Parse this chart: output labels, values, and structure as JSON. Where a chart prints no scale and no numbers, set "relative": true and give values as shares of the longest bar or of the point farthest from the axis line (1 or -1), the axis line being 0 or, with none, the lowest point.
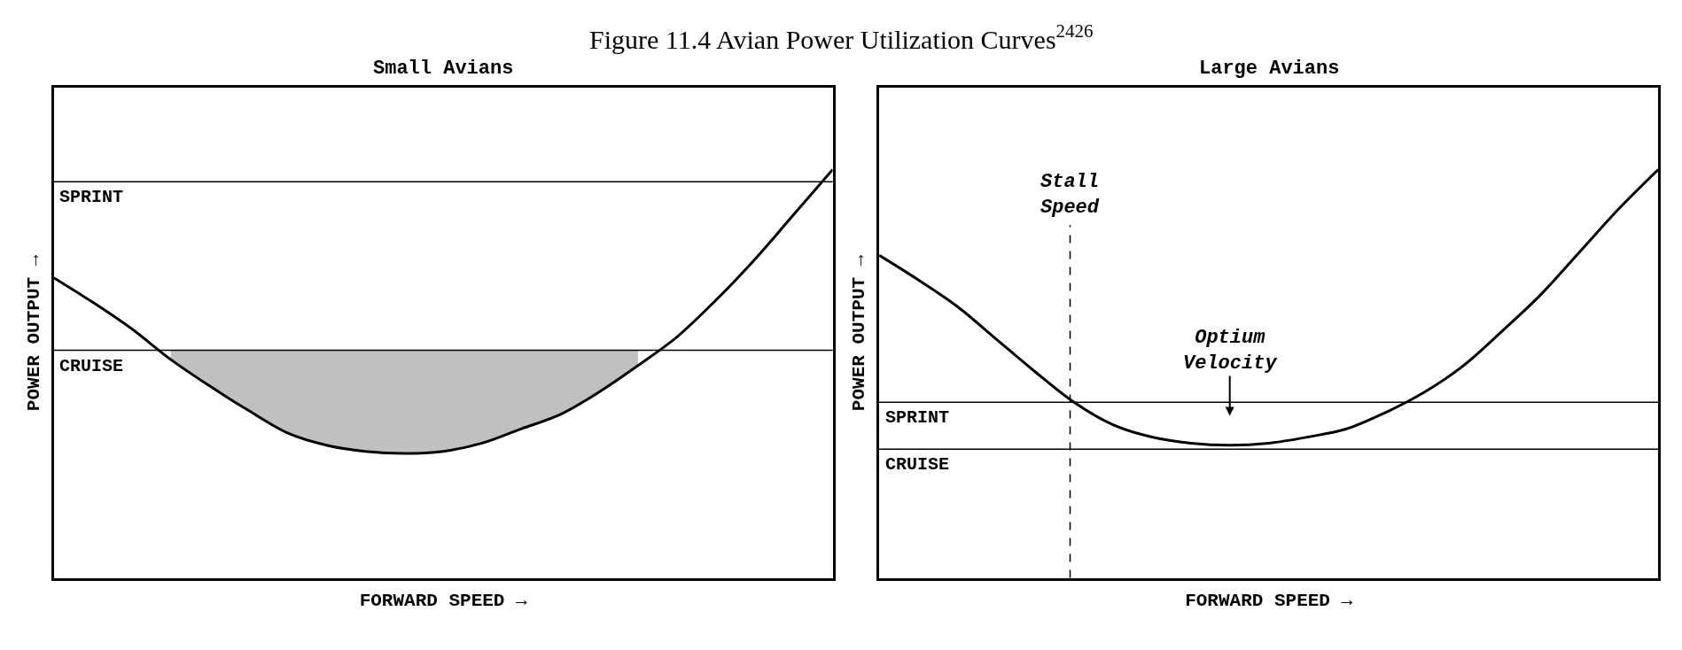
{
  "chart_data": [
    {
      "type": "line",
      "title": "Small Avians",
      "xlabel": "FORWARD SPEED →",
      "ylabel": "POWER OUTPUT →",
      "relative": true,
      "tick_labels": false,
      "categories": [
        null,
        null,
        null,
        null,
        null,
        null,
        null,
        null,
        null,
        null,
        null,
        null,
        null,
        null,
        null,
        null,
        null,
        null,
        null,
        null,
        null
      ],
      "series": [
        {
          "color": "#000000",
          "values": [
            0.735,
            0.675,
            0.61,
            0.535,
            0.47,
            0.41,
            0.355,
            0.325,
            0.31,
            0.305,
            0.31,
            0.33,
            0.365,
            0.4,
            0.455,
            0.52,
            0.59,
            0.68,
            0.78,
            0.89,
            1.0
          ],
          "lower": [
            null,
            null,
            null,
            0.535,
            0.47,
            0.41,
            0.355,
            0.325,
            0.31,
            0.305,
            0.31,
            0.33,
            0.365,
            0.4,
            0.455,
            0.52,
            null,
            null,
            null,
            null,
            null
          ],
          "upper": [
            null,
            null,
            null,
            0.5575,
            0.5575,
            0.5575,
            0.5575,
            0.5575,
            0.5575,
            0.5575,
            0.5575,
            0.5575,
            0.5575,
            0.5575,
            0.5575,
            0.5575,
            null,
            null,
            null,
            null,
            null
          ]
        }
      ],
      "ref_lines": [
        {
          "axis": "y",
          "value": 0.97,
          "label": "SPRINT"
        },
        {
          "axis": "y",
          "value": 0.5575,
          "label": "CRUISE"
        }
      ],
      "annotations": [
        "Figure 11.4 Avian Power Utilization Curves$^{2426}$"
      ]
    },
    {
      "type": "line",
      "title": "Large Avians",
      "xlabel": "FORWARD SPEED →",
      "ylabel": "POWER OUTPUT →",
      "relative": true,
      "tick_labels": false,
      "categories": [
        null,
        null,
        null,
        null,
        null,
        null,
        null,
        null,
        null,
        null,
        null,
        null,
        null,
        null,
        null,
        null,
        null,
        null,
        null,
        null,
        null
      ],
      "series": [
        {
          "color": "#000000",
          "values": [
            0.79,
            0.73,
            0.665,
            0.585,
            0.505,
            0.43,
            0.375,
            0.345,
            0.33,
            0.325,
            0.33,
            0.345,
            0.365,
            0.405,
            0.455,
            0.52,
            0.605,
            0.695,
            0.8,
            0.905,
            1.0
          ]
        }
      ],
      "ref_lines": [
        {
          "axis": "y",
          "value": 0.43,
          "label": "SPRINT"
        },
        {
          "axis": "y",
          "value": 0.315,
          "label": "CRUISE"
        }
      ],
      "annotations": [
        "Stall\nSpeed",
        "Optium\nVelocity"
      ]
    }
  ]
}
